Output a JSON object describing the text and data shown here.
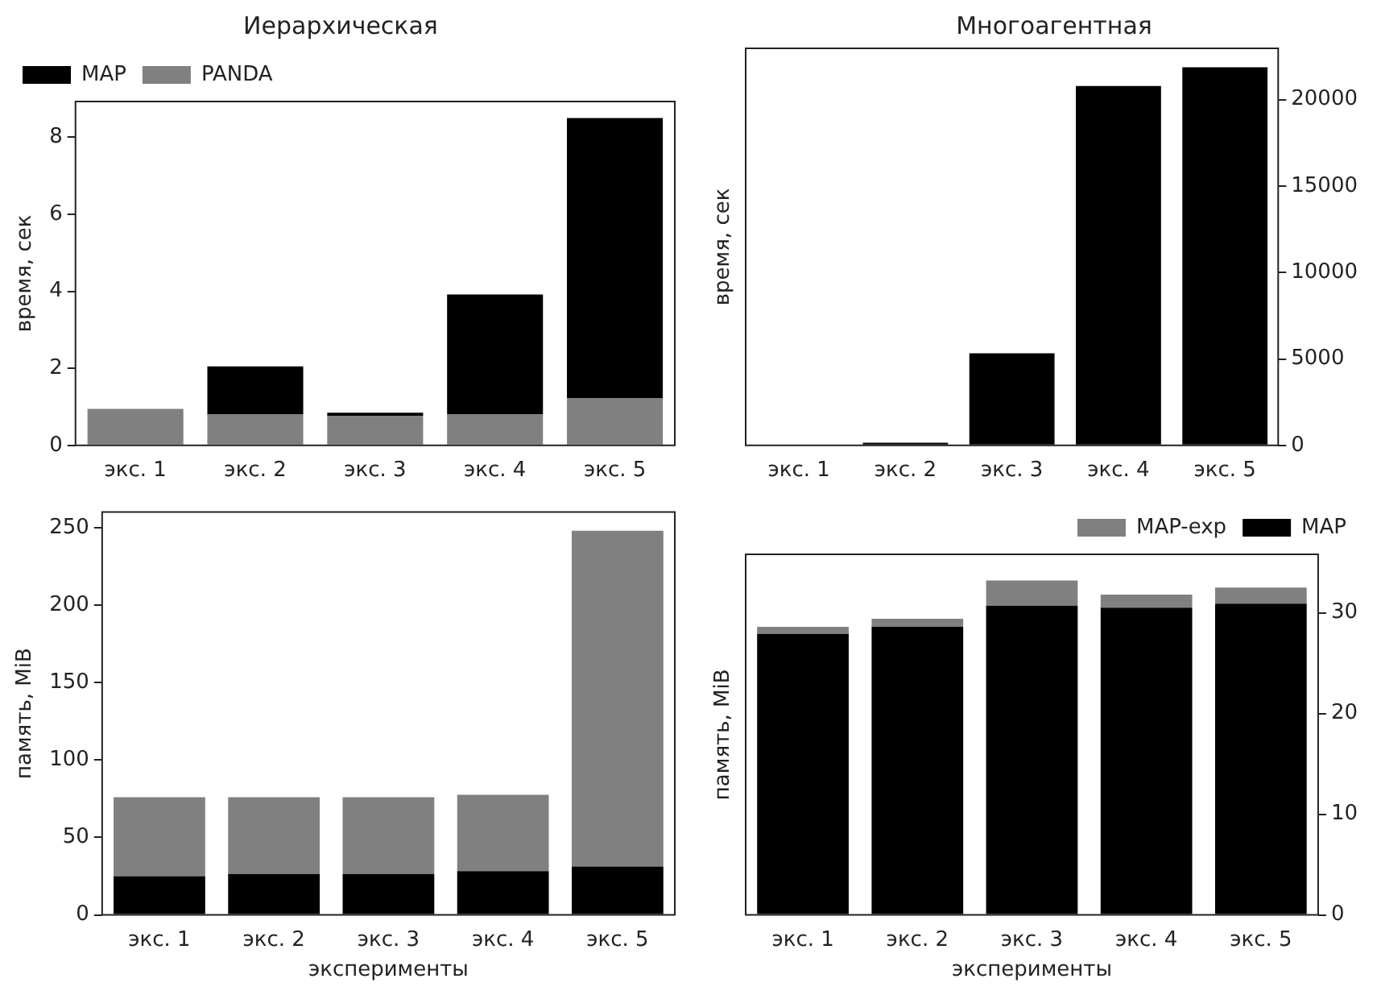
{
  "chart_data": [
    {
      "type": "bar",
      "title": "Иерархическая",
      "ylabel": "время, сек",
      "categories": [
        "экс. 1",
        "экс. 2",
        "экс. 3",
        "экс. 4",
        "экс. 5"
      ],
      "stacked": true,
      "legend": "top left",
      "ylim": [
        0,
        8.93
      ],
      "yticks": [
        0,
        2,
        4,
        6,
        8
      ],
      "series": [
        {
          "name": "PANDA",
          "color": "#808080",
          "values": [
            0.95,
            0.8,
            0.77,
            0.8,
            1.22
          ]
        },
        {
          "name": "MAP",
          "color": "#000000",
          "values": [
            0,
            1.25,
            0.08,
            3.12,
            7.28
          ]
        }
      ]
    },
    {
      "type": "bar",
      "title": "Многоагентная",
      "y2label": "время, сек",
      "categories": [
        "экс. 1",
        "экс. 2",
        "экс. 3",
        "экс. 4",
        "экс. 5"
      ],
      "y2lim": [
        0,
        22970
      ],
      "y2ticks": [
        0,
        5000,
        10000,
        15000,
        20000
      ],
      "series": [
        {
          "color": "#000000",
          "axis": "y2",
          "values": [
            0,
            150,
            5330,
            20790,
            21880
          ]
        }
      ]
    },
    {
      "type": "bar",
      "ylabel": "память, MiB",
      "xlabel": "эксперименты",
      "categories": [
        "экс. 1",
        "экс. 2",
        "экс. 3",
        "экс. 4",
        "экс. 5"
      ],
      "stacked": true,
      "ylim": [
        0,
        260
      ],
      "yticks": [
        0,
        50,
        100,
        150,
        200,
        250
      ],
      "series": [
        {
          "color": "#000000",
          "values": [
            25,
            26.5,
            26.5,
            28.3,
            31.3
          ]
        },
        {
          "color": "#808080",
          "values": [
            51,
            49.5,
            49.5,
            49.2,
            216.7
          ]
        }
      ]
    },
    {
      "type": "bar",
      "y2label": "память, MiB",
      "xlabel": "эксперименты",
      "categories": [
        "экс. 1",
        "экс. 2",
        "экс. 3",
        "экс. 4",
        "экс. 5"
      ],
      "stacked": true,
      "legend": "top right",
      "y2lim": [
        0,
        35.8
      ],
      "y2ticks": [
        0,
        10,
        20,
        30
      ],
      "series": [
        {
          "name": "MAP",
          "color": "#000000",
          "axis": "y2",
          "values": [
            27.9,
            28.6,
            30.7,
            30.5,
            30.9
          ]
        },
        {
          "name": "MAP-exp",
          "color": "#808080",
          "axis": "y2",
          "values": [
            0.7,
            0.8,
            2.5,
            1.3,
            1.6
          ]
        }
      ]
    }
  ]
}
